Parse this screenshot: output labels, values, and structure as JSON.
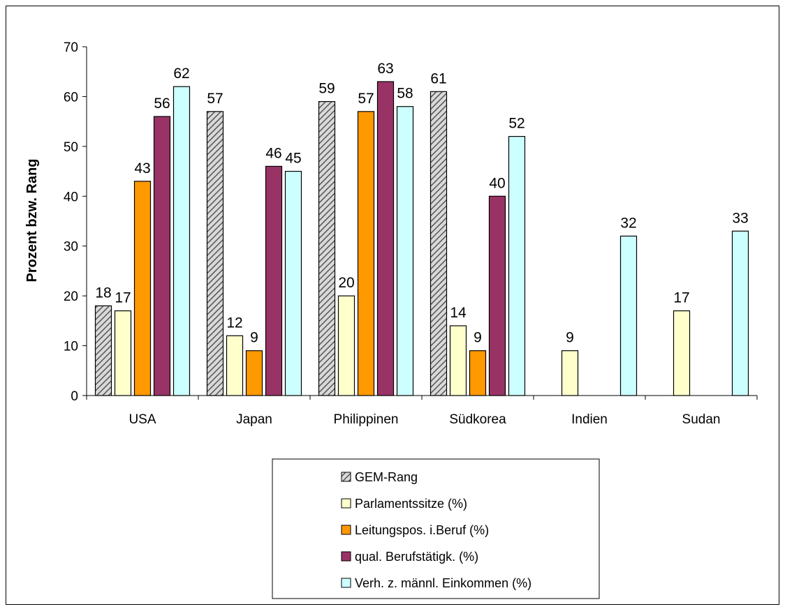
{
  "chart_data": {
    "type": "bar",
    "title": "",
    "xlabel": "",
    "ylabel": "Prozent bzw. Rang",
    "ylim": [
      0,
      70
    ],
    "yticks": [
      0,
      10,
      20,
      30,
      40,
      50,
      60,
      70
    ],
    "grid": false,
    "legend_position": "bottom",
    "categories": [
      "USA",
      "Japan",
      "Philippinen",
      "Südkorea",
      "Indien",
      "Sudan"
    ],
    "series": [
      {
        "name": "GEM-Rang",
        "color": "#a6a6a6",
        "pattern": "hatch",
        "values": [
          18,
          57,
          59,
          61,
          null,
          null
        ]
      },
      {
        "name": "Parlamentssitze (%)",
        "color": "#ffffcc",
        "values": [
          17,
          12,
          20,
          14,
          9,
          17
        ]
      },
      {
        "name": "Leitungspos. i.Beruf (%)",
        "color": "#ff9900",
        "values": [
          43,
          9,
          57,
          9,
          null,
          null
        ]
      },
      {
        "name": "qual. Berufstätigk. (%)",
        "color": "#993366",
        "values": [
          56,
          46,
          63,
          40,
          null,
          null
        ]
      },
      {
        "name": "Verh. z. männl. Einkommen (%)",
        "color": "#ccffff",
        "values": [
          62,
          45,
          58,
          52,
          32,
          33
        ]
      }
    ]
  }
}
